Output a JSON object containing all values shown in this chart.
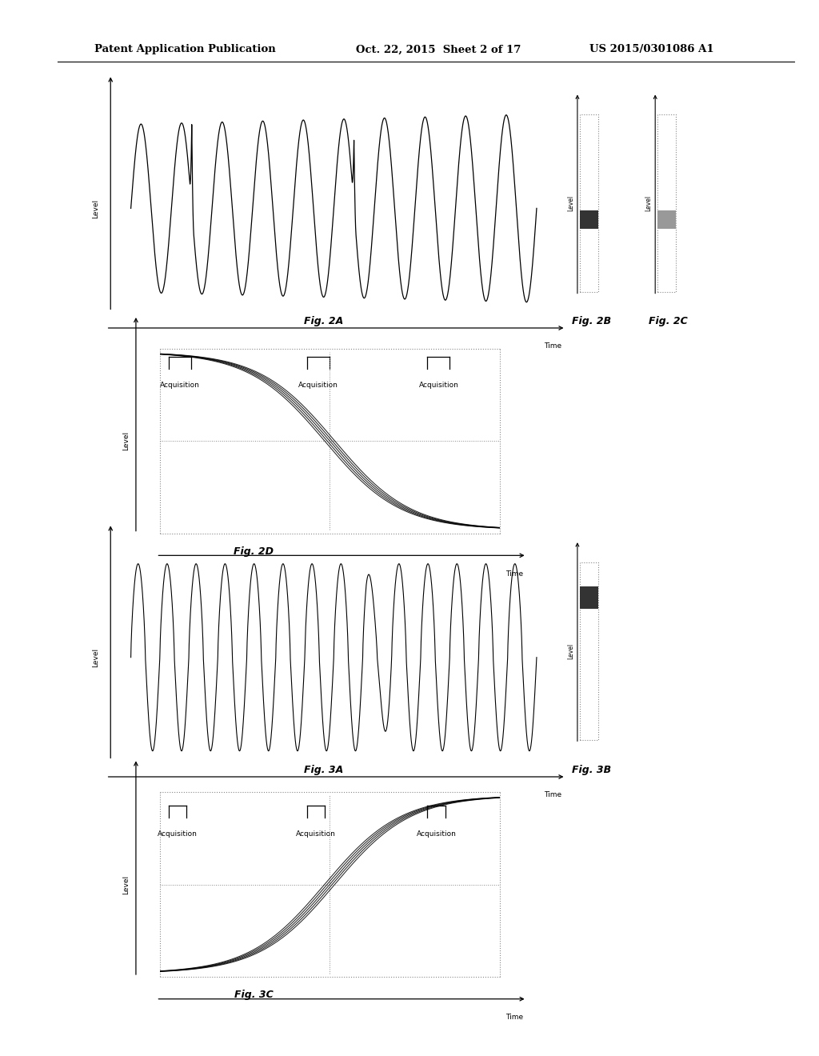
{
  "header_left": "Patent Application Publication",
  "header_mid": "Oct. 22, 2015  Sheet 2 of 17",
  "header_right": "US 2015/0301086 A1",
  "bg_color": "#ffffff",
  "fig2a_label": "Fig. 2A",
  "fig2b_label": "Fig. 2B",
  "fig2c_label": "Fig. 2C",
  "fig2d_label": "Fig. 2D",
  "fig3a_label": "Fig. 3A",
  "fig3b_label": "Fig. 3B",
  "fig3c_label": "Fig. 3C",
  "label_level": "Level",
  "label_time": "Time",
  "label_acquisition": "Acquisition"
}
